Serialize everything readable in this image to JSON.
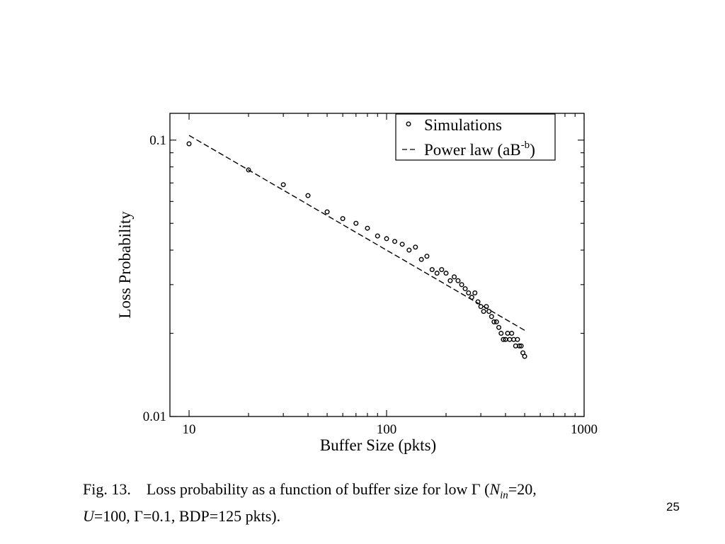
{
  "chart_data": {
    "type": "scatter",
    "xscale": "log",
    "yscale": "log",
    "xlim": [
      8,
      1000
    ],
    "ylim": [
      0.01,
      0.125
    ],
    "xlabel": "Buffer Size (pkts)",
    "ylabel": "Loss Probability",
    "xticks": [
      {
        "value": 10,
        "label": "10"
      },
      {
        "value": 100,
        "label": "100"
      },
      {
        "value": 1000,
        "label": "1000"
      }
    ],
    "yticks": [
      {
        "value": 0.01,
        "label": "0.01"
      },
      {
        "value": 0.1,
        "label": "0.1"
      }
    ],
    "legend_position": "top-right",
    "series": [
      {
        "name": "Simulations",
        "style": "open-circle",
        "x": [
          10,
          20,
          30,
          40,
          50,
          60,
          70,
          80,
          90,
          100,
          110,
          120,
          130,
          140,
          150,
          160,
          170,
          180,
          190,
          200,
          210,
          220,
          230,
          240,
          250,
          260,
          270,
          280,
          290,
          300,
          310,
          320,
          330,
          340,
          350,
          360,
          370,
          380,
          390,
          400,
          410,
          420,
          430,
          440,
          450,
          460,
          470,
          480,
          490,
          500
        ],
        "y": [
          0.097,
          0.078,
          0.069,
          0.063,
          0.055,
          0.052,
          0.05,
          0.048,
          0.045,
          0.044,
          0.043,
          0.042,
          0.04,
          0.041,
          0.037,
          0.038,
          0.034,
          0.033,
          0.034,
          0.033,
          0.031,
          0.032,
          0.031,
          0.03,
          0.029,
          0.028,
          0.027,
          0.028,
          0.026,
          0.025,
          0.024,
          0.025,
          0.024,
          0.023,
          0.022,
          0.022,
          0.021,
          0.02,
          0.019,
          0.019,
          0.02,
          0.019,
          0.02,
          0.019,
          0.018,
          0.019,
          0.018,
          0.018,
          0.017,
          0.0165
        ]
      },
      {
        "name": "Power law (aB-b)",
        "style": "dashed-line",
        "x": [
          10,
          500
        ],
        "y": [
          0.104,
          0.0205
        ]
      }
    ],
    "legend": [
      {
        "label": "Simulations",
        "symbol": "circle"
      },
      {
        "label": "Power law (aB",
        "superscript": "-b",
        "suffix": ")",
        "symbol": "dash"
      }
    ]
  },
  "caption": {
    "fig_label": "Fig. 13.",
    "line1_text": "Loss probability as a function of buffer size for low Γ (",
    "n_symbol": "N",
    "n_sub": "in",
    "line1_end": "=20,",
    "u_symbol": "U",
    "line2_text": "=100, Γ=0.1, BDP=125 pkts)."
  },
  "page_number": "25"
}
